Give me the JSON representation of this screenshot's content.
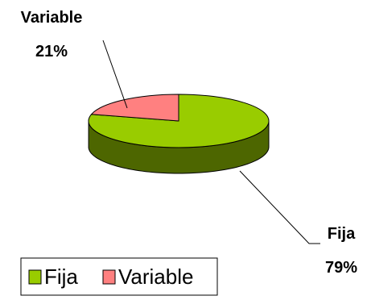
{
  "chart_data": {
    "type": "pie",
    "three_d": true,
    "slices": [
      {
        "label": "Fija",
        "value": 79,
        "percent_label": "79%",
        "color": "#99CC00",
        "side_color": "#4D6600"
      },
      {
        "label": "Variable",
        "value": 21,
        "percent_label": "21%",
        "color": "#FF8080",
        "side_color": "#804040"
      }
    ],
    "legend": {
      "placement": "bottom-left",
      "items": [
        "Fija",
        "Variable"
      ]
    }
  }
}
